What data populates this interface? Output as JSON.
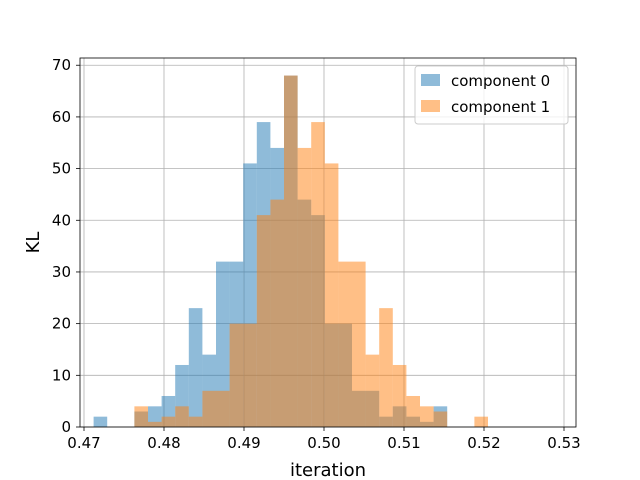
{
  "chart_data": {
    "type": "histogram",
    "xlabel": "iteration",
    "ylabel": "KL",
    "xlim": [
      0.4695,
      0.5315
    ],
    "ylim": [
      0,
      71.4
    ],
    "grid": true,
    "legend": "top-right",
    "bin_width": 0.0017,
    "x_ticks": [
      "0.47",
      "0.48",
      "0.49",
      "0.50",
      "0.51",
      "0.52",
      "0.53"
    ],
    "x_tick_values": [
      0.47,
      0.48,
      0.49,
      0.5,
      0.51,
      0.52,
      0.53
    ],
    "y_ticks": [
      "0",
      "10",
      "20",
      "30",
      "40",
      "50",
      "60",
      "70"
    ],
    "y_tick_values": [
      0,
      10,
      20,
      30,
      40,
      50,
      60,
      70
    ],
    "series": [
      {
        "name": "component 0",
        "color": "#1f77b4",
        "opacity": 0.5,
        "bin_start": 0.4712,
        "counts": [
          2,
          0,
          0,
          3,
          4,
          6,
          12,
          23,
          14,
          32,
          32,
          51,
          59,
          54,
          68,
          44,
          41,
          20,
          20,
          7,
          7,
          2,
          4,
          2,
          1,
          4
        ]
      },
      {
        "name": "component 1",
        "color": "#ff7f0e",
        "opacity": 0.5,
        "bin_start": 0.4763,
        "counts": [
          4,
          1,
          2,
          4,
          2,
          7,
          7,
          20,
          20,
          41,
          44,
          68,
          54,
          59,
          51,
          32,
          32,
          14,
          23,
          12,
          6,
          4,
          3,
          0,
          0,
          2
        ]
      }
    ]
  }
}
